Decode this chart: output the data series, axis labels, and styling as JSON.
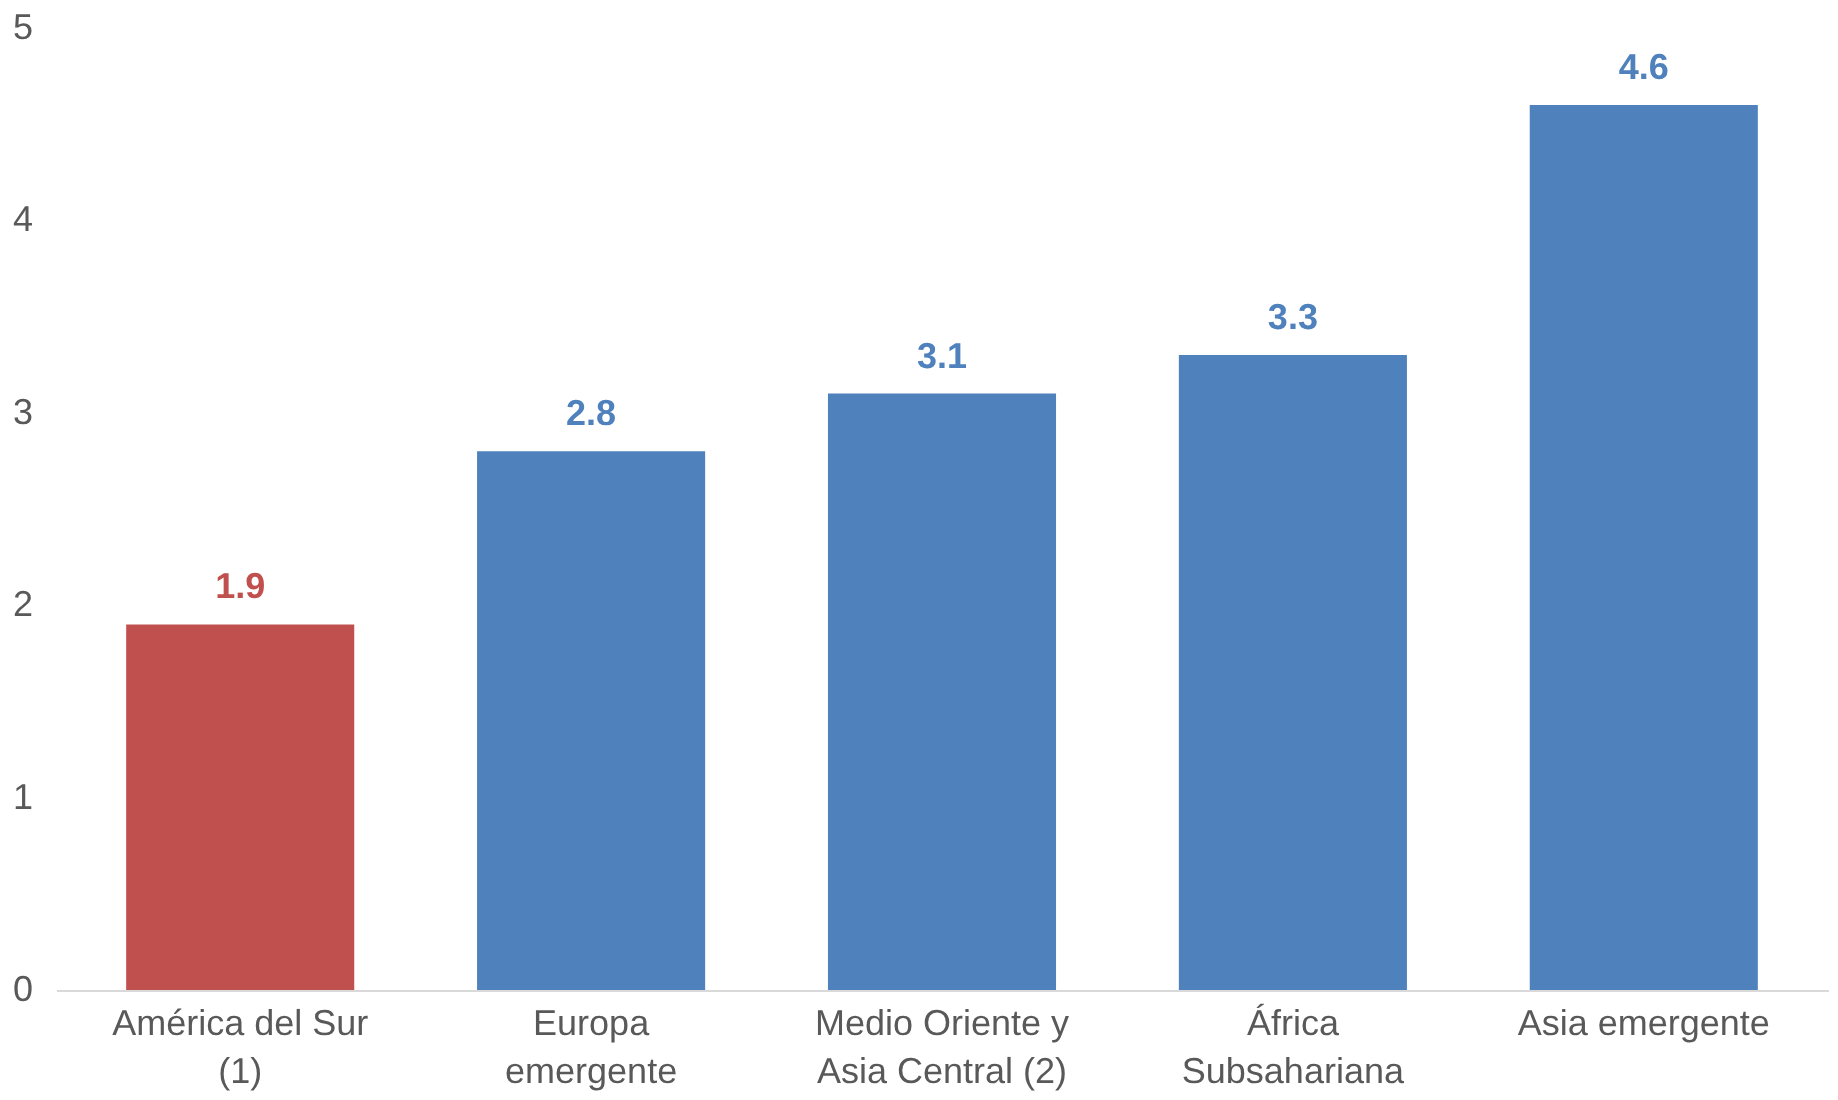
{
  "chart_data": {
    "type": "bar",
    "categories": [
      "América del Sur\n(1)",
      "Europa\nemergente",
      "Medio Oriente y\nAsia Central (2)",
      "África\nSubsahariana",
      "Asia emergente"
    ],
    "values": [
      1.9,
      2.8,
      3.1,
      3.3,
      4.6
    ],
    "colors": [
      "#c0504d",
      "#4f81bd",
      "#4f81bd",
      "#4f81bd",
      "#4f81bd"
    ],
    "data_labels": true,
    "ylim": [
      0,
      5
    ],
    "yticks": [
      0,
      1,
      2,
      3,
      4,
      5
    ],
    "grid": false
  }
}
